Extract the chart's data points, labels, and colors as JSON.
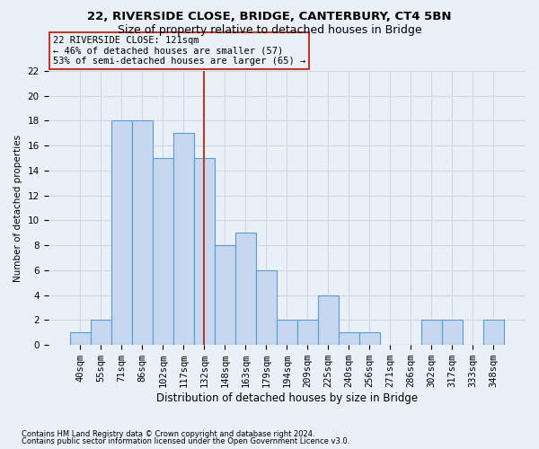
{
  "title1": "22, RIVERSIDE CLOSE, BRIDGE, CANTERBURY, CT4 5BN",
  "title2": "Size of property relative to detached houses in Bridge",
  "xlabel": "Distribution of detached houses by size in Bridge",
  "ylabel": "Number of detached properties",
  "footnote1": "Contains HM Land Registry data © Crown copyright and database right 2024.",
  "footnote2": "Contains public sector information licensed under the Open Government Licence v3.0.",
  "categories": [
    "40sqm",
    "55sqm",
    "71sqm",
    "86sqm",
    "102sqm",
    "117sqm",
    "132sqm",
    "148sqm",
    "163sqm",
    "179sqm",
    "194sqm",
    "209sqm",
    "225sqm",
    "240sqm",
    "256sqm",
    "271sqm",
    "286sqm",
    "302sqm",
    "317sqm",
    "333sqm",
    "348sqm"
  ],
  "values": [
    1,
    2,
    18,
    18,
    15,
    17,
    15,
    8,
    9,
    6,
    2,
    2,
    4,
    1,
    1,
    0,
    0,
    2,
    2,
    0,
    2
  ],
  "bar_color": "#c5d8f0",
  "bar_edge_color": "#5b9bd5",
  "grid_color": "#d0d8e4",
  "background_color": "#eaf0f8",
  "ref_line_x": 6.0,
  "ref_line_color": "#c0392b",
  "annotation_text": "22 RIVERSIDE CLOSE: 121sqm\n← 46% of detached houses are smaller (57)\n53% of semi-detached houses are larger (65) →",
  "annotation_box_color": "#c0392b",
  "ylim": [
    0,
    22
  ],
  "yticks": [
    0,
    2,
    4,
    6,
    8,
    10,
    12,
    14,
    16,
    18,
    20,
    22
  ],
  "title1_fontsize": 9.5,
  "title2_fontsize": 9.0,
  "xlabel_fontsize": 8.5,
  "ylabel_fontsize": 7.5,
  "tick_fontsize": 7.5,
  "annotation_fontsize": 7.5,
  "footnote_fontsize": 6.0
}
